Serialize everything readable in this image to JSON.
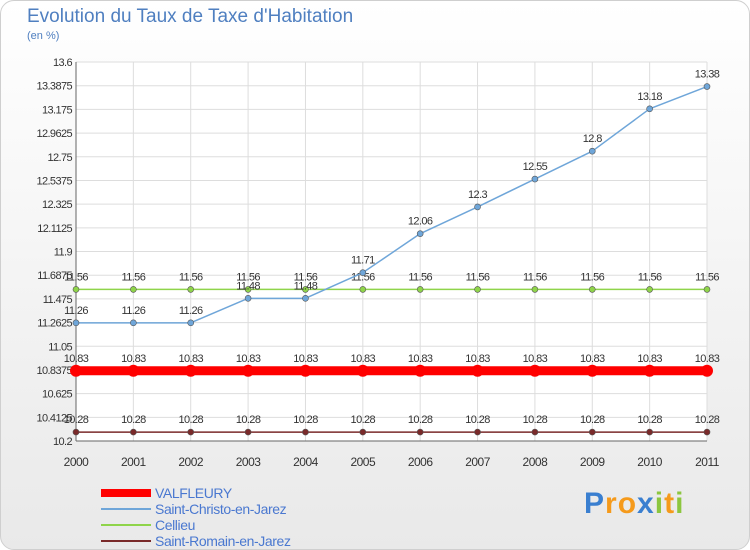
{
  "chart_data": {
    "type": "line",
    "title": "Evolution du Taux de Taxe d'Habitation",
    "subtitle": "(en %)",
    "x": [
      "2000",
      "2001",
      "2002",
      "2003",
      "2004",
      "2005",
      "2006",
      "2007",
      "2008",
      "2009",
      "2010",
      "2011"
    ],
    "ylim": [
      10.2,
      13.6
    ],
    "yticks": [
      "13.6",
      "13.3875",
      "13.175",
      "12.9625",
      "12.75",
      "12.5375",
      "12.325",
      "12.1125",
      "11.9",
      "11.6875",
      "11.475",
      "11.2625",
      "11.05",
      "10.8375",
      "10.625",
      "10.4125",
      "10.2"
    ],
    "grid": true,
    "legend_position": "bottom-left",
    "series": [
      {
        "name": "VALFLEURY",
        "color": "#ff0000",
        "values": [
          10.83,
          10.83,
          10.83,
          10.83,
          10.83,
          10.83,
          10.83,
          10.83,
          10.83,
          10.83,
          10.83,
          10.83
        ],
        "labels": [
          "10.83",
          "10.83",
          "10.83",
          "10.83",
          "10.83",
          "10.83",
          "10.83",
          "10.83",
          "10.83",
          "10.83",
          "10.83",
          "10.83"
        ]
      },
      {
        "name": "Saint-Christo-en-Jarez",
        "color": "#6fa6d9",
        "values": [
          11.26,
          11.26,
          11.26,
          11.48,
          11.48,
          11.71,
          12.06,
          12.3,
          12.55,
          12.8,
          13.18,
          13.38
        ],
        "labels": [
          "11.26",
          "11.26",
          "11.26",
          "11.48",
          "11.48",
          "11.71",
          "12.06",
          "12.3",
          "12.55",
          "12.8",
          "13.18",
          "13.38"
        ]
      },
      {
        "name": "Cellieu",
        "color": "#8fd44a",
        "values": [
          11.56,
          11.56,
          11.56,
          11.56,
          11.56,
          11.56,
          11.56,
          11.56,
          11.56,
          11.56,
          11.56,
          11.56
        ],
        "labels": [
          "11.56",
          "11.56",
          "11.56",
          "11.56",
          "11.56",
          "11.56",
          "11.56",
          "11.56",
          "11.56",
          "11.56",
          "11.56",
          "11.56"
        ]
      },
      {
        "name": "Saint-Romain-en-Jarez",
        "color": "#7a2a2a",
        "values": [
          10.28,
          10.28,
          10.28,
          10.28,
          10.28,
          10.28,
          10.28,
          10.28,
          10.28,
          10.28,
          10.28,
          10.28
        ],
        "labels": [
          "10.28",
          "10.28",
          "10.28",
          "10.28",
          "10.28",
          "10.28",
          "10.28",
          "10.28",
          "10.28",
          "10.28",
          "10.28",
          "10.28"
        ]
      }
    ]
  },
  "logo": {
    "letters": [
      {
        "ch": "P",
        "color": "#3a7fd0"
      },
      {
        "ch": "r",
        "color": "#f59a1b"
      },
      {
        "ch": "o",
        "color": "#f59a1b"
      },
      {
        "ch": "x",
        "color": "#3a7fd0"
      },
      {
        "ch": "i",
        "color": "#8cc63f"
      },
      {
        "ch": "t",
        "color": "#f59a1b"
      },
      {
        "ch": "i",
        "color": "#8cc63f"
      }
    ]
  }
}
